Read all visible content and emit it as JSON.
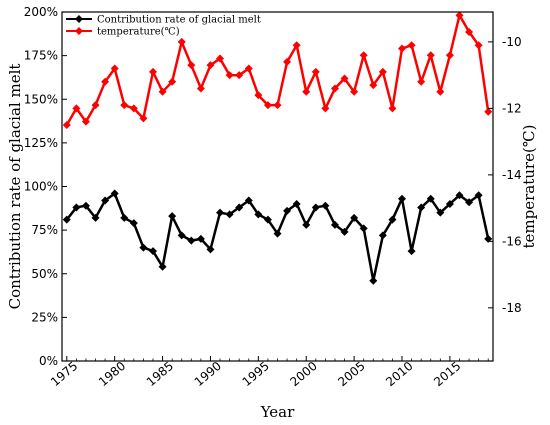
{
  "chart_data": {
    "type": "line",
    "xlabel": "Year",
    "ylabel_left": "Contribution rate of glacial melt",
    "ylabel_right": "temperature(℃)",
    "xlim": [
      1974.5,
      2019.5
    ],
    "ylim_left": [
      0,
      200
    ],
    "ylim_right": [
      -19.6,
      -9.1
    ],
    "x_ticks": [
      1975,
      1980,
      1985,
      1990,
      1995,
      2000,
      2005,
      2010,
      2015
    ],
    "x_tick_labels": [
      "1975",
      "1980",
      "1985",
      "1990",
      "1995",
      "2000",
      "2005",
      "2010",
      "2015"
    ],
    "y_left_ticks": [
      0,
      25,
      50,
      75,
      100,
      125,
      150,
      175,
      200
    ],
    "y_left_tick_labels": [
      "0%",
      "25%",
      "50%",
      "75%",
      "100%",
      "125%",
      "150%",
      "175%",
      "200%"
    ],
    "y_right_ticks": [
      -18,
      -16,
      -14,
      -12,
      -10
    ],
    "y_right_tick_labels": [
      "-18",
      "-16",
      "-14",
      "-12",
      "-10"
    ],
    "legend_position": "top-left",
    "grid": false,
    "series": [
      {
        "name": "Contribution rate of glacial melt",
        "axis": "left",
        "color": "#000000",
        "marker": "diamond",
        "x": [
          1975,
          1976,
          1977,
          1978,
          1979,
          1980,
          1981,
          1982,
          1983,
          1984,
          1985,
          1986,
          1987,
          1988,
          1989,
          1990,
          1991,
          1992,
          1993,
          1994,
          1995,
          1996,
          1997,
          1998,
          1999,
          2000,
          2001,
          2002,
          2003,
          2004,
          2005,
          2006,
          2007,
          2008,
          2009,
          2010,
          2011,
          2012,
          2013,
          2014,
          2015,
          2016,
          2017,
          2018,
          2019
        ],
        "values": [
          81,
          88,
          89,
          82,
          92,
          96,
          82,
          79,
          65,
          63,
          54,
          83,
          72,
          69,
          70,
          64,
          85,
          84,
          88,
          92,
          84,
          81,
          73,
          86,
          90,
          78,
          88,
          89,
          78,
          74,
          82,
          76,
          46,
          72,
          81,
          93,
          63,
          88,
          93,
          85,
          90,
          95,
          91,
          95,
          70
        ]
      },
      {
        "name": "temperature(℃)",
        "axis": "right",
        "color": "#ff0000",
        "marker": "diamond",
        "x": [
          1975,
          1976,
          1977,
          1978,
          1979,
          1980,
          1981,
          1982,
          1983,
          1984,
          1985,
          1986,
          1987,
          1988,
          1989,
          1990,
          1991,
          1992,
          1993,
          1994,
          1995,
          1996,
          1997,
          1998,
          1999,
          2000,
          2001,
          2002,
          2003,
          2004,
          2005,
          2006,
          2007,
          2008,
          2009,
          2010,
          2011,
          2012,
          2013,
          2014,
          2015,
          2016,
          2017,
          2018,
          2019
        ],
        "values": [
          -12.5,
          -12.0,
          -12.4,
          -11.9,
          -11.2,
          -10.8,
          -11.9,
          -12.0,
          -12.3,
          -10.9,
          -11.5,
          -11.2,
          -10.0,
          -10.7,
          -11.4,
          -10.7,
          -10.5,
          -11.0,
          -11.0,
          -10.8,
          -11.6,
          -11.9,
          -11.9,
          -10.6,
          -10.1,
          -11.5,
          -10.9,
          -12.0,
          -11.4,
          -11.1,
          -11.5,
          -10.4,
          -11.3,
          -10.9,
          -12.0,
          -10.2,
          -10.1,
          -11.2,
          -10.4,
          -11.5,
          -10.4,
          -9.2,
          -9.7,
          -10.1,
          -12.1
        ]
      }
    ]
  }
}
